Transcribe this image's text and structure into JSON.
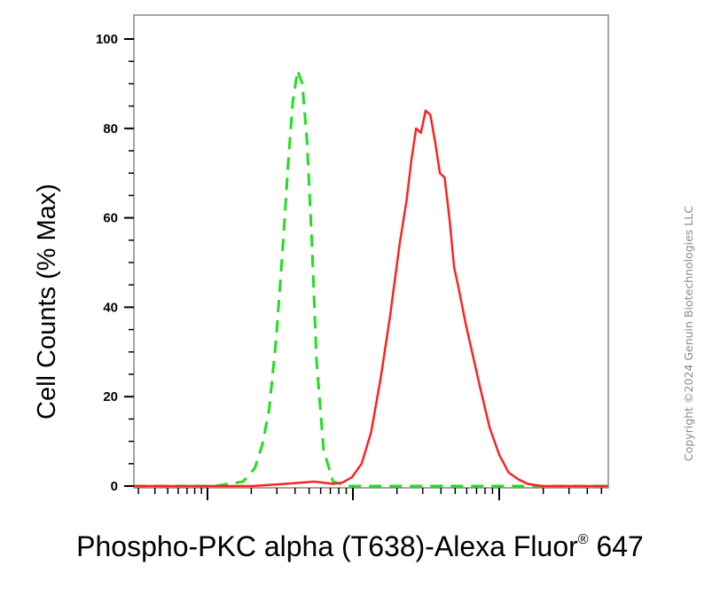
{
  "chart_data": {
    "type": "line",
    "ylabel": "Cell Counts (% Max)",
    "xlabel_main": "Phospho-PKC alpha (T638)-Alexa Fluor",
    "xlabel_sup": "®",
    "xlabel_end": " 647",
    "ylim": [
      0,
      100
    ],
    "xlim": [
      0.0,
      1.0
    ],
    "y_ticks": [
      "0",
      "20",
      "40",
      "60",
      "80",
      "100"
    ],
    "y_tick_values": [
      0,
      20,
      40,
      60,
      80,
      100
    ],
    "x_scale": "log",
    "x_tick_labels_shown": false,
    "grid": false,
    "series": [
      {
        "color": "#22dd22",
        "style": "dashed",
        "x": [
          0.0,
          0.1,
          0.17,
          0.2,
          0.23,
          0.255,
          0.27,
          0.285,
          0.3,
          0.315,
          0.325,
          0.335,
          0.345,
          0.355,
          0.365,
          0.375,
          0.385,
          0.4,
          0.42,
          0.45,
          0.6,
          1.0
        ],
        "y": [
          0,
          0,
          0,
          0.5,
          1,
          4,
          9,
          17,
          33,
          55,
          72,
          86,
          93,
          90,
          77,
          55,
          28,
          8,
          1,
          0,
          0,
          0
        ]
      },
      {
        "color": "#ff2222",
        "style": "solid",
        "x": [
          0.0,
          0.25,
          0.32,
          0.38,
          0.42,
          0.44,
          0.46,
          0.48,
          0.5,
          0.52,
          0.54,
          0.56,
          0.575,
          0.585,
          0.595,
          0.605,
          0.615,
          0.625,
          0.635,
          0.645,
          0.655,
          0.665,
          0.675,
          0.685,
          0.7,
          0.715,
          0.73,
          0.75,
          0.77,
          0.79,
          0.81,
          0.83,
          0.86,
          0.9,
          1.0
        ],
        "y": [
          0,
          0,
          0.5,
          1,
          0.5,
          0.8,
          2,
          5,
          12,
          24,
          38,
          54,
          64,
          73,
          80,
          79,
          84,
          83,
          77,
          70,
          69,
          60,
          49,
          44,
          36,
          29,
          22,
          13,
          7,
          3,
          1.5,
          0.5,
          0,
          0,
          0
        ]
      }
    ]
  },
  "copyright": "Copyright ©2024 Genuin Biotechnologies LLC"
}
